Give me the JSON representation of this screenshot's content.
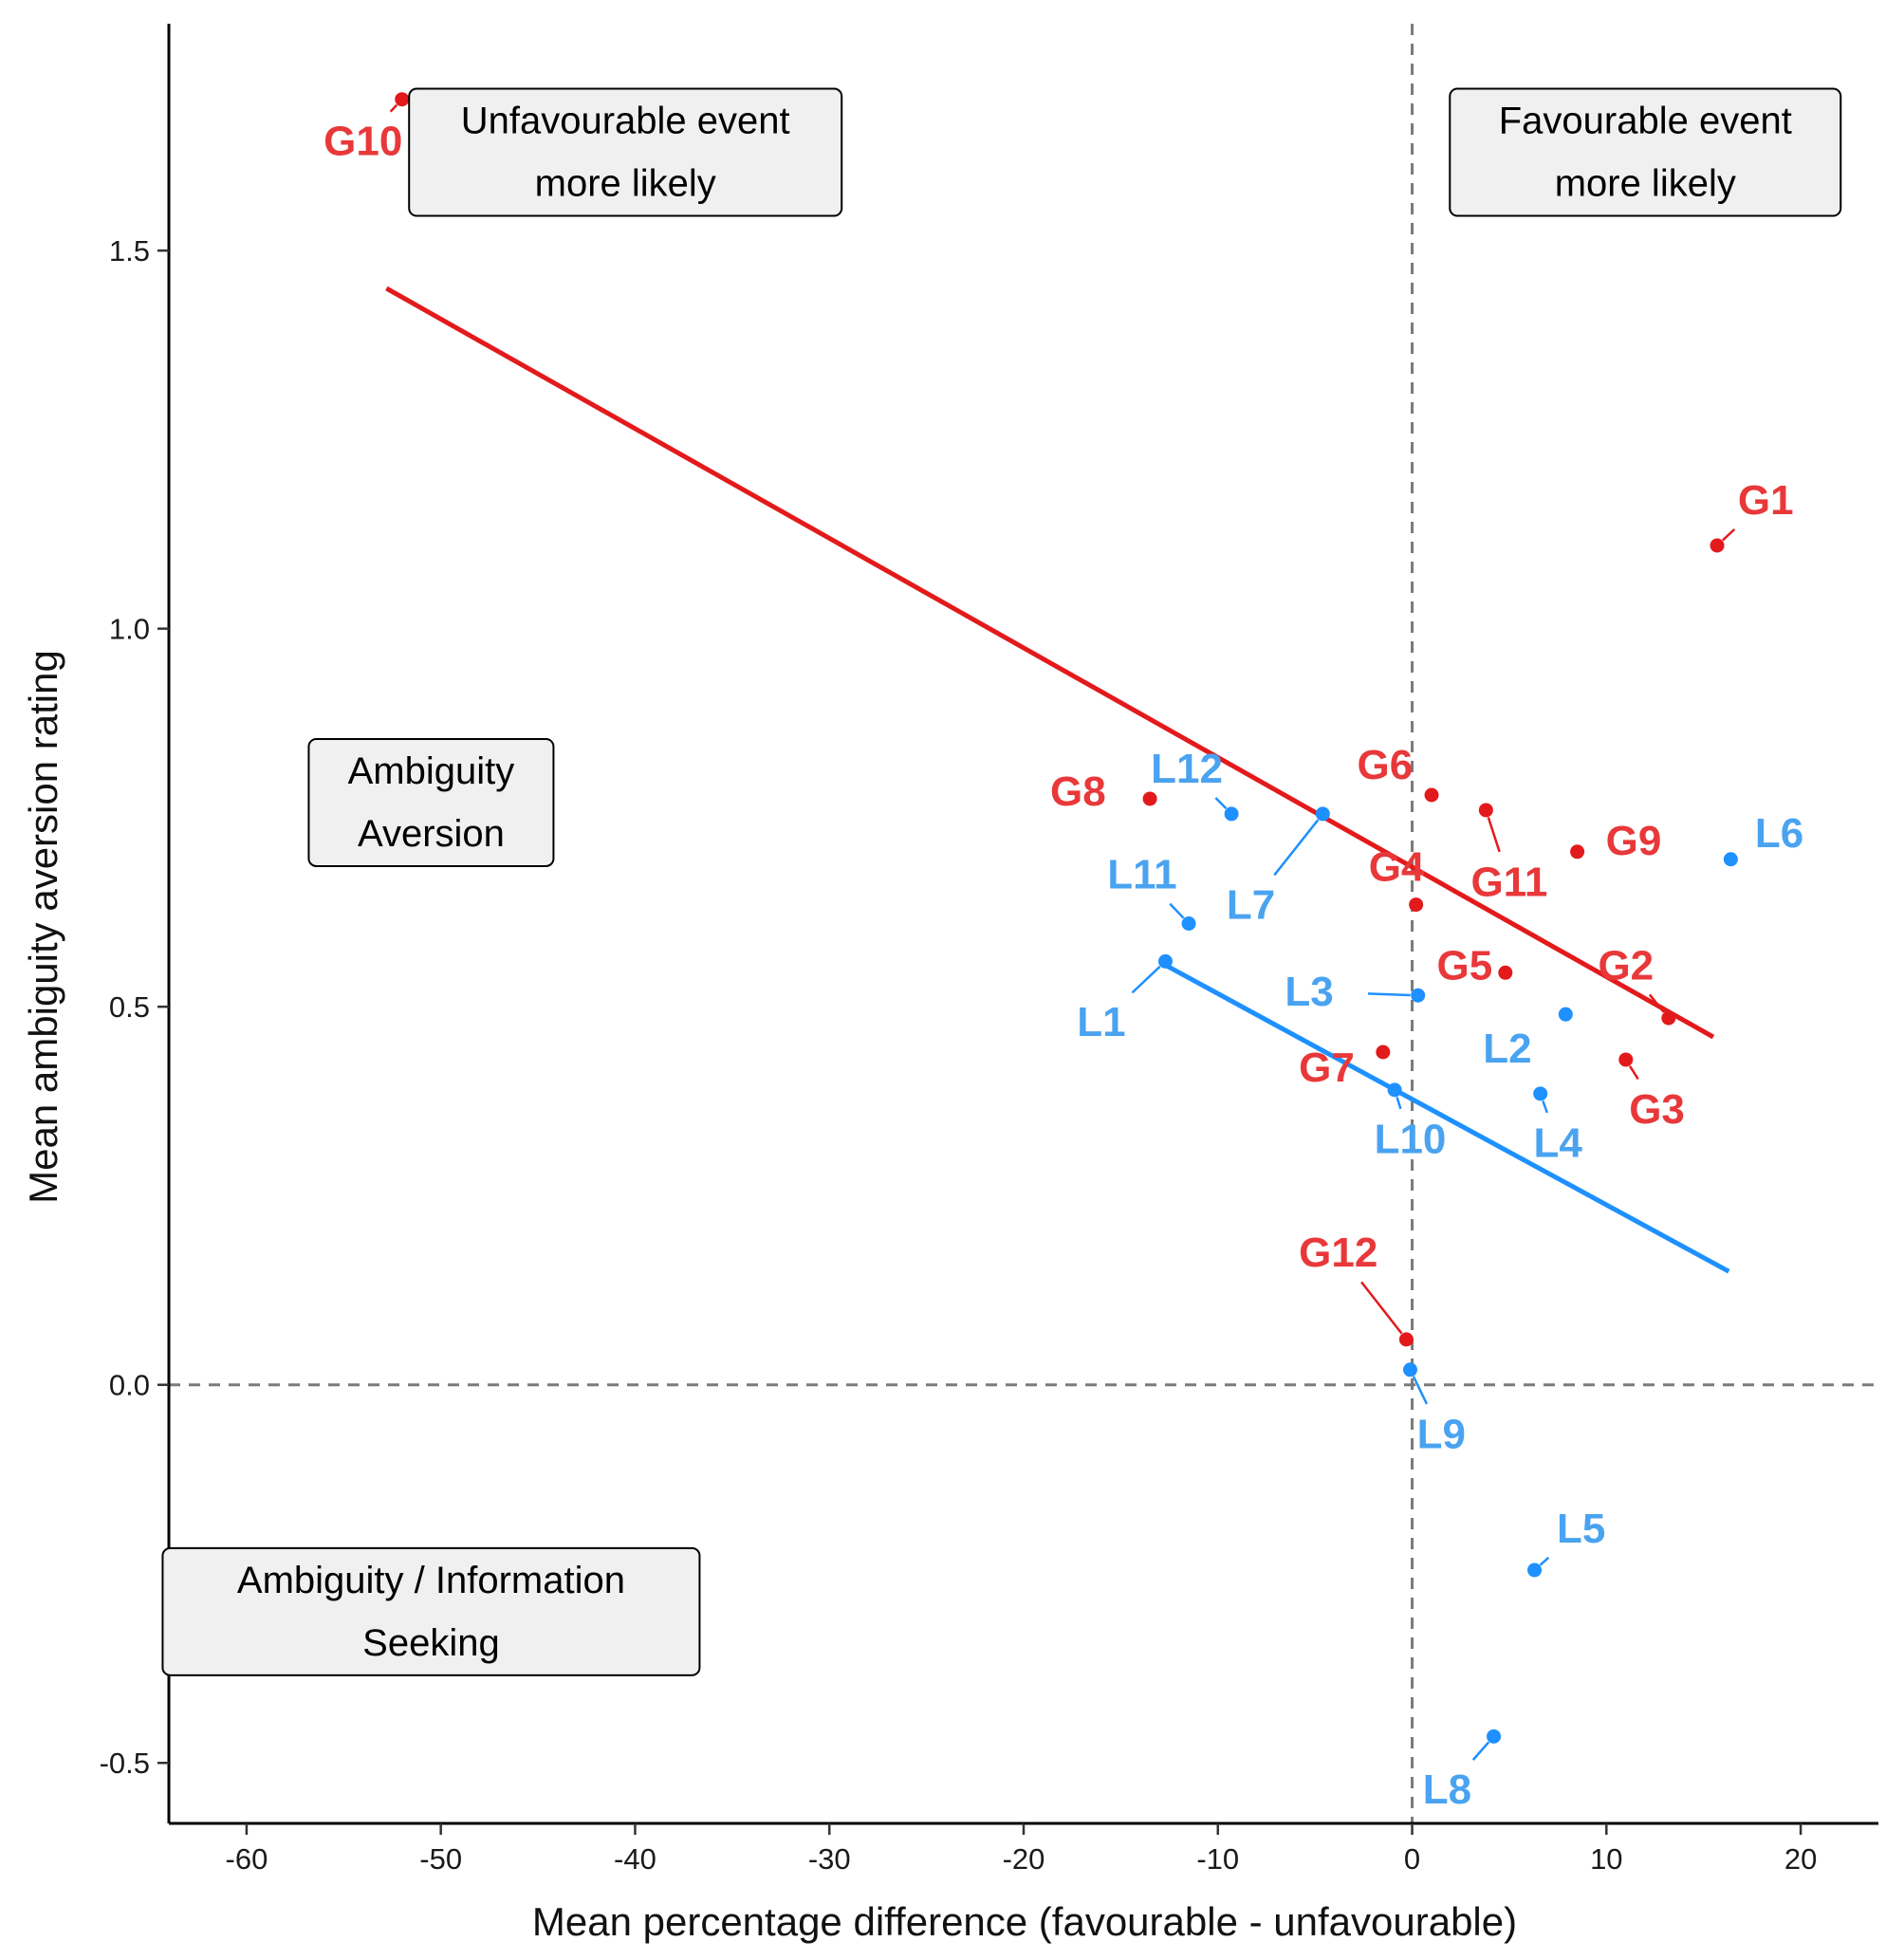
{
  "chart_data": {
    "type": "scatter",
    "xlabel": "Mean percentage difference (favourable - unfavourable)",
    "ylabel": "Mean ambiguity aversion rating",
    "xlim": [
      -64,
      24
    ],
    "ylim": [
      -0.58,
      1.8
    ],
    "xticks": [
      -60,
      -50,
      -40,
      -30,
      -20,
      -10,
      0,
      10,
      20
    ],
    "yticks": [
      -0.5,
      0.0,
      0.5,
      1.0,
      1.5
    ],
    "xtick_labels": [
      "-60",
      "-50",
      "-40",
      "-30",
      "-20",
      "-10",
      "0",
      "10",
      "20"
    ],
    "ytick_labels": [
      "-0.5",
      "0.0",
      "0.5",
      "1.0",
      "1.5"
    ],
    "grid": false,
    "reference_lines": {
      "x": 0,
      "y": 0,
      "style": "dashed"
    },
    "series": [
      {
        "name": "G",
        "color": "#e31a1c",
        "label_color": "#e8383a",
        "points": [
          {
            "label": "G1",
            "x": 15.7,
            "y": 1.11,
            "lx": 18.2,
            "ly": 1.17
          },
          {
            "label": "G2",
            "x": 13.2,
            "y": 0.485,
            "lx": 11.0,
            "ly": 0.555
          },
          {
            "label": "G3",
            "x": 11.0,
            "y": 0.43,
            "lx": 12.6,
            "ly": 0.365
          },
          {
            "label": "G4",
            "x": 0.2,
            "y": 0.635,
            "lx": -0.8,
            "ly": 0.685
          },
          {
            "label": "G5",
            "x": 4.8,
            "y": 0.545,
            "lx": 2.7,
            "ly": 0.555
          },
          {
            "label": "G6",
            "x": 1.0,
            "y": 0.78,
            "lx": -1.4,
            "ly": 0.82
          },
          {
            "label": "G7",
            "x": -1.5,
            "y": 0.44,
            "lx": -4.4,
            "ly": 0.42
          },
          {
            "label": "G8",
            "x": -13.5,
            "y": 0.775,
            "lx": -17.2,
            "ly": 0.785
          },
          {
            "label": "G9",
            "x": 8.5,
            "y": 0.705,
            "lx": 11.4,
            "ly": 0.72
          },
          {
            "label": "G10",
            "x": -52.0,
            "y": 1.7,
            "lx": -54.0,
            "ly": 1.645
          },
          {
            "label": "G11",
            "x": 3.8,
            "y": 0.76,
            "lx": 5.0,
            "ly": 0.665
          },
          {
            "label": "G12",
            "x": -0.3,
            "y": 0.06,
            "lx": -3.8,
            "ly": 0.175
          }
        ],
        "trend": {
          "x": [
            -52.8,
            15.5
          ],
          "y": [
            1.45,
            0.46
          ]
        }
      },
      {
        "name": "L",
        "color": "#1e90ff",
        "label_color": "#4aa3f0",
        "points": [
          {
            "label": "L1",
            "x": -12.7,
            "y": 0.56,
            "lx": -16.0,
            "ly": 0.48
          },
          {
            "label": "L2",
            "x": 7.9,
            "y": 0.49,
            "lx": 4.9,
            "ly": 0.445
          },
          {
            "label": "L3",
            "x": 0.3,
            "y": 0.515,
            "lx": -5.3,
            "ly": 0.52
          },
          {
            "label": "L4",
            "x": 6.6,
            "y": 0.385,
            "lx": 7.5,
            "ly": 0.32
          },
          {
            "label": "L5",
            "x": 6.3,
            "y": -0.245,
            "lx": 8.7,
            "ly": -0.19
          },
          {
            "label": "L6",
            "x": 16.4,
            "y": 0.695,
            "lx": 18.9,
            "ly": 0.73
          },
          {
            "label": "L7",
            "x": -4.6,
            "y": 0.755,
            "lx": -8.3,
            "ly": 0.635
          },
          {
            "label": "L8",
            "x": 4.2,
            "y": -0.465,
            "lx": 1.8,
            "ly": -0.535
          },
          {
            "label": "L9",
            "x": -0.1,
            "y": 0.02,
            "lx": 1.5,
            "ly": -0.065
          },
          {
            "label": "L10",
            "x": -0.9,
            "y": 0.39,
            "lx": -0.1,
            "ly": 0.325
          },
          {
            "label": "L11",
            "x": -11.5,
            "y": 0.61,
            "lx": -13.9,
            "ly": 0.675
          },
          {
            "label": "L12",
            "x": -9.3,
            "y": 0.755,
            "lx": -11.6,
            "ly": 0.815
          }
        ],
        "trend": {
          "x": [
            -12.7,
            16.3
          ],
          "y": [
            0.555,
            0.15
          ]
        }
      }
    ],
    "annotations": [
      {
        "name": "unfavourable-box",
        "lines": [
          "Unfavourable event",
          "more likely"
        ],
        "x": -40.5,
        "y": 1.63
      },
      {
        "name": "favourable-box",
        "lines": [
          "Favourable event",
          "more likely"
        ],
        "x": 12.0,
        "y": 1.63
      },
      {
        "name": "ambiguity-aversion-box",
        "lines": [
          "Ambiguity",
          "Aversion"
        ],
        "x": -50.5,
        "y": 0.77
      },
      {
        "name": "information-seeking-box",
        "lines": [
          "Ambiguity / Information",
          "Seeking"
        ],
        "x": -50.5,
        "y": -0.3
      }
    ]
  }
}
